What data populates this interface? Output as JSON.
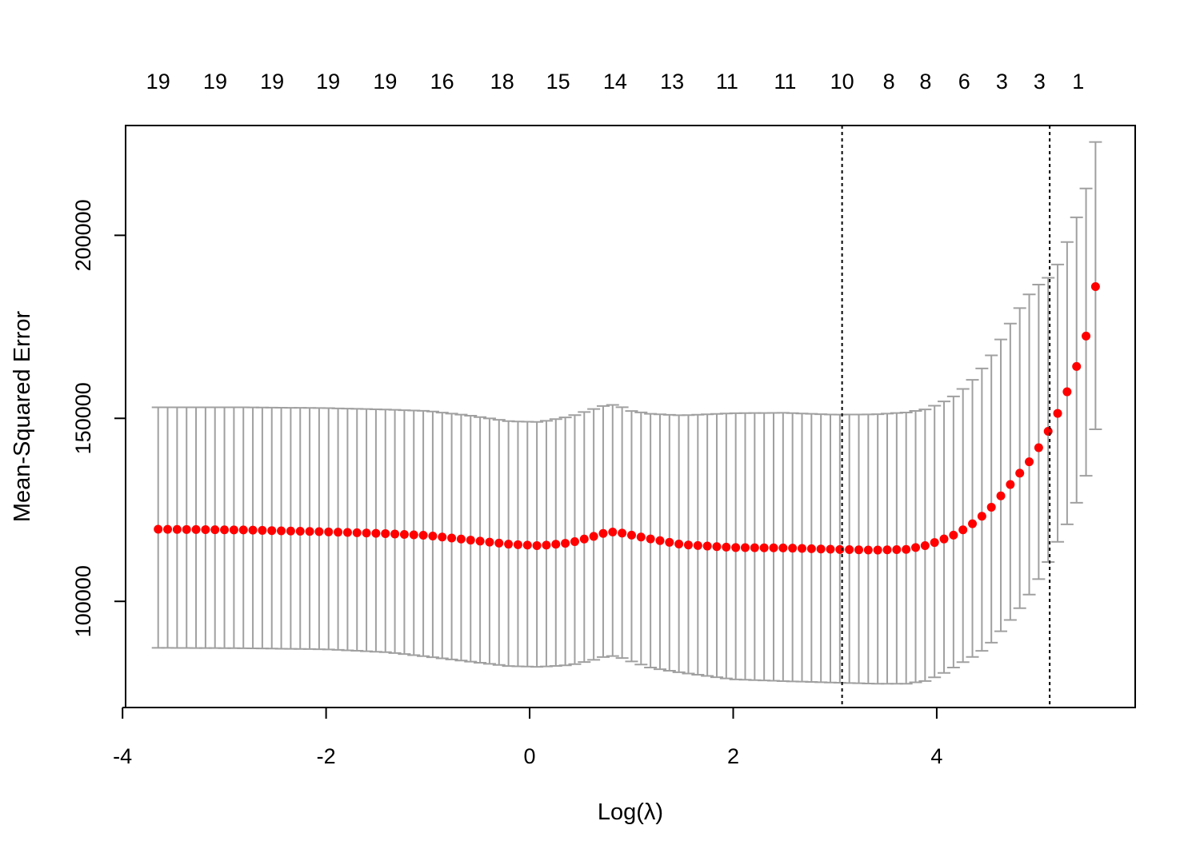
{
  "chart_data": {
    "type": "scatter",
    "title": "",
    "xlabel": "Log(λ)",
    "ylabel": "Mean-Squared Error",
    "xlim": [
      -3.97,
      5.95
    ],
    "ylim": [
      71000,
      230000
    ],
    "x_ticks": [
      -4,
      -2,
      0,
      2,
      4
    ],
    "x_tick_labels": [
      "-4",
      "-2",
      "0",
      "2",
      "4"
    ],
    "y_ticks": [
      100000,
      150000,
      200000
    ],
    "y_tick_labels": [
      "100000",
      "150000",
      "200000"
    ],
    "top_axis": {
      "x": [
        -3.65,
        -3.09,
        -2.53,
        -1.98,
        -1.42,
        -0.86,
        -0.27,
        0.28,
        0.84,
        1.4,
        1.94,
        2.51,
        3.07,
        3.53,
        3.89,
        4.27,
        4.64,
        5.01,
        5.39
      ],
      "labels": [
        "19",
        "19",
        "19",
        "19",
        "19",
        "16",
        "18",
        "15",
        "14",
        "13",
        "11",
        "11",
        "10",
        "8",
        "8",
        "6",
        "3",
        "3",
        "1"
      ]
    },
    "vlines": [
      {
        "x": 3.07,
        "style": "dotted"
      },
      {
        "x": 5.11,
        "style": "dotted"
      }
    ],
    "grid": false,
    "legend": "none",
    "colors": {
      "points": "#ff0000",
      "errorbars": "#a0a0a0",
      "axes": "#000000"
    },
    "x_range": [
      -3.65,
      5.56
    ],
    "n_points": 100,
    "keypoints_x": [
      -3.65,
      -2.8,
      -2.0,
      -1.4,
      -1.0,
      -0.6,
      -0.2,
      0.1,
      0.4,
      0.6,
      0.75,
      0.85,
      1.0,
      1.2,
      1.5,
      2.0,
      2.5,
      3.0,
      3.4,
      3.7,
      3.9,
      4.05,
      4.2,
      4.35,
      4.5,
      4.65,
      4.8,
      4.95,
      5.1,
      5.2,
      5.3,
      5.45,
      5.56
    ],
    "keypoints_mean": [
      119700,
      119500,
      119000,
      118500,
      118000,
      116800,
      115600,
      115200,
      116000,
      117500,
      118800,
      119000,
      118100,
      117000,
      115500,
      114700,
      114600,
      114200,
      114000,
      114200,
      115300,
      116800,
      118500,
      121200,
      124500,
      129500,
      134500,
      139500,
      146700,
      152000,
      158500,
      170000,
      186000
    ],
    "keypoints_upper": [
      153000,
      153000,
      152800,
      152400,
      152000,
      150800,
      149200,
      149000,
      150500,
      152300,
      153600,
      153700,
      152000,
      151200,
      150800,
      151400,
      151500,
      151000,
      151100,
      151600,
      152500,
      154300,
      156500,
      160500,
      165500,
      172500,
      179500,
      185500,
      188500,
      192500,
      199500,
      210500,
      225500
    ],
    "keypoints_lower": [
      87300,
      87200,
      86900,
      86100,
      84900,
      83600,
      82300,
      82100,
      82600,
      83800,
      85000,
      85100,
      83600,
      81800,
      80500,
      78700,
      78200,
      77800,
      77500,
      77500,
      78300,
      80100,
      82500,
      84800,
      87500,
      92500,
      97500,
      103500,
      111000,
      117000,
      122000,
      132000,
      147000
    ]
  }
}
